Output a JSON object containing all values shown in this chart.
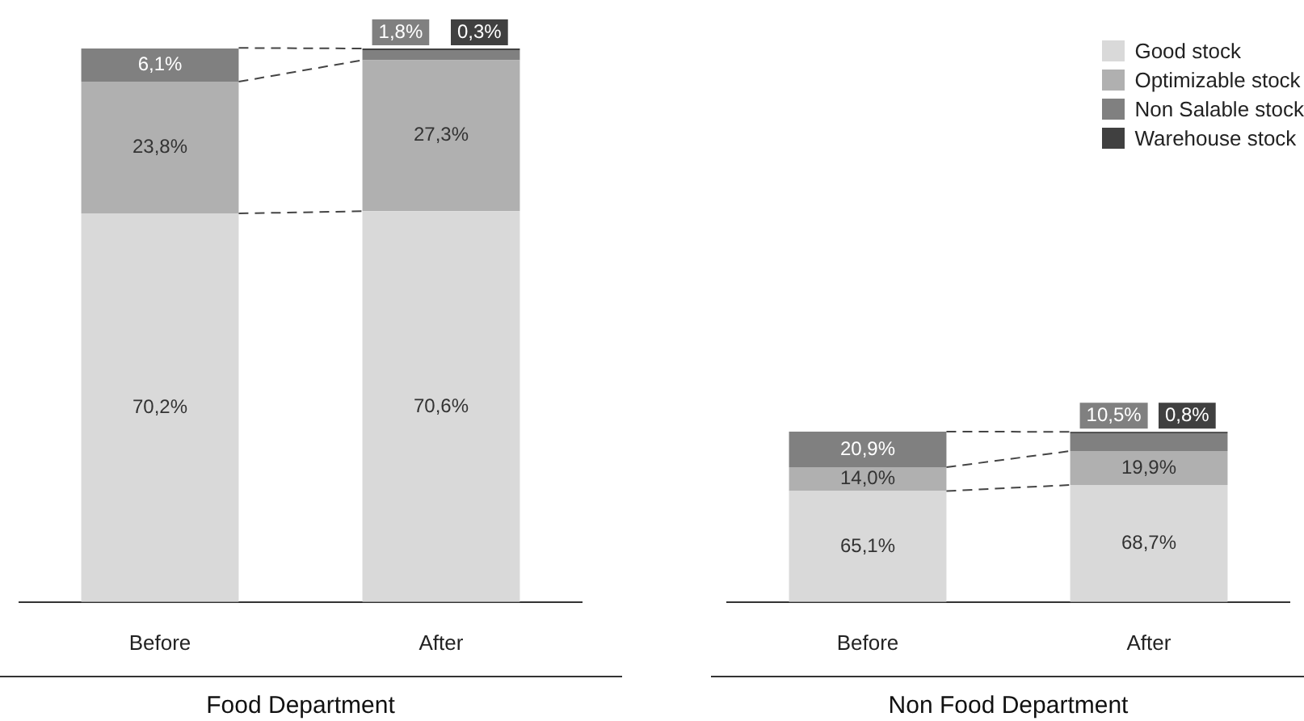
{
  "chart_data": [
    {
      "type": "bar",
      "stacked": true,
      "xlabel": "Food Department",
      "categories": [
        "Before",
        "After"
      ],
      "ylim": [
        0,
        100
      ],
      "tick_labels": "x",
      "legend": false,
      "series": [
        {
          "color": "#d9d9d9",
          "values": [
            70.2,
            70.6
          ],
          "value_labels": [
            "70,2%",
            "70,6%"
          ]
        },
        {
          "color": "#b0b0b0",
          "values": [
            23.8,
            27.3
          ],
          "value_labels": [
            "23,8%",
            "27,3%"
          ]
        },
        {
          "color": "#808080",
          "values": [
            6.1,
            1.8
          ],
          "value_labels": [
            "6,1%",
            "1,8%"
          ]
        },
        {
          "color": "#404040",
          "values": [
            null,
            0.3
          ],
          "value_labels": [
            null,
            "0,3%"
          ]
        }
      ]
    },
    {
      "type": "bar",
      "stacked": true,
      "xlabel": "Non Food Department",
      "categories": [
        "Before",
        "After"
      ],
      "tick_labels": "x",
      "legend": "top right",
      "series": [
        {
          "name": "Good stock",
          "color": "#d9d9d9",
          "values": [
            65.1,
            68.7
          ],
          "value_labels": [
            "65,1%",
            "68,7%"
          ]
        },
        {
          "name": "Optimizable stock",
          "color": "#b0b0b0",
          "values": [
            14.0,
            19.9
          ],
          "value_labels": [
            "14,0%",
            "19,9%"
          ]
        },
        {
          "name": "Non Salable stock",
          "color": "#808080",
          "values": [
            20.9,
            10.5
          ],
          "value_labels": [
            "20,9%",
            "10,5%"
          ]
        },
        {
          "name": "Warehouse stock",
          "color": "#404040",
          "values": [
            null,
            0.8
          ],
          "value_labels": [
            null,
            "0,8%"
          ]
        }
      ]
    }
  ]
}
